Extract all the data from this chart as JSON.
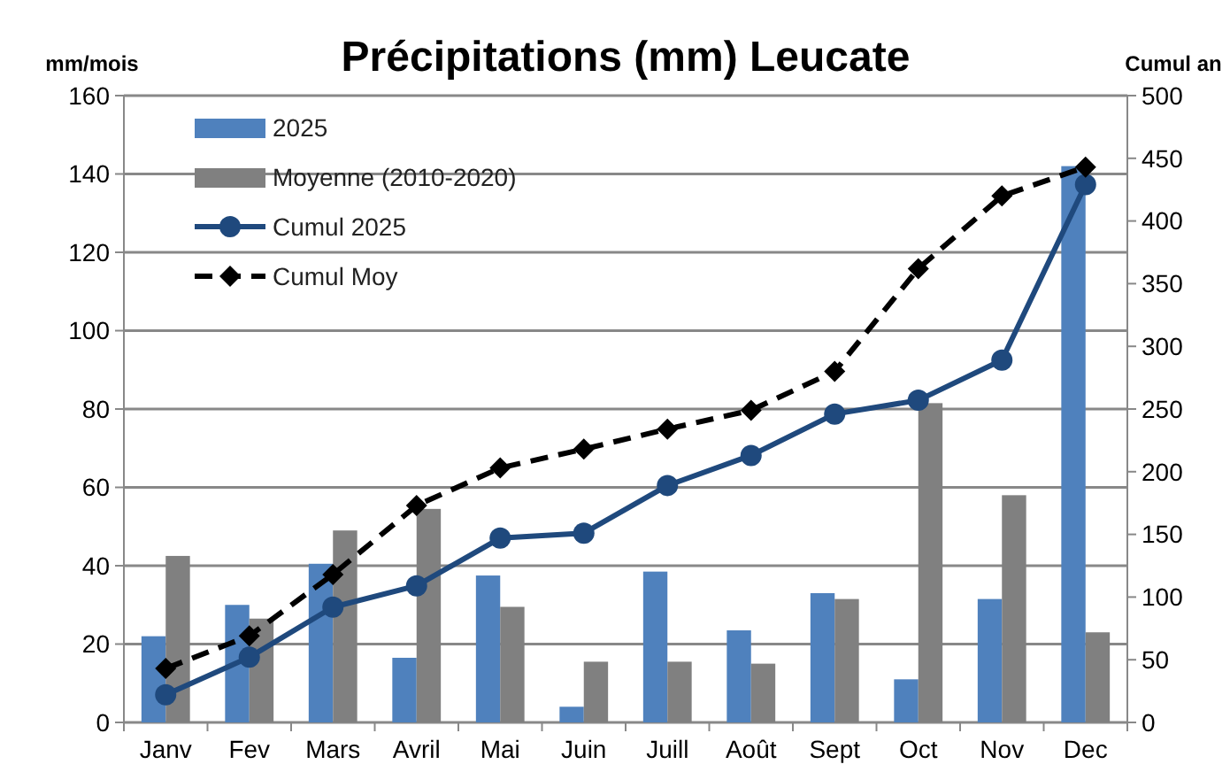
{
  "chart_data": {
    "type": "bar",
    "title": "Précipitations (mm) Leucate",
    "ylabel": "mm/mois",
    "y2label": "Cumul an",
    "categories": [
      "Janv",
      "Fev",
      "Mars",
      "Avril",
      "Mai",
      "Juin",
      "Juill",
      "Août",
      "Sept",
      "Oct",
      "Nov",
      "Dec"
    ],
    "series": [
      {
        "name": "2025",
        "color": "#4f81bd",
        "values": [
          22,
          30,
          40.5,
          16.5,
          37.5,
          4,
          38.5,
          23.5,
          33,
          11,
          31.5,
          142
        ]
      },
      {
        "name": "Moyenne (2010-2020)",
        "color": "#808080",
        "values": [
          42.5,
          26.5,
          49,
          54.5,
          29.5,
          15.5,
          15.5,
          15,
          31.5,
          81.5,
          58,
          23
        ]
      },
      {
        "name": "Cumul 2025",
        "type": "line",
        "axis": "y2",
        "color": "#1f497d",
        "marker": "circle",
        "line_style": "solid",
        "values": [
          22,
          52,
          92,
          109,
          147,
          151,
          189,
          213,
          246,
          257,
          289,
          429
        ]
      },
      {
        "name": "Cumul Moy",
        "type": "line",
        "axis": "y2",
        "color": "#000000",
        "marker": "diamond",
        "line_style": "dashed",
        "values": [
          43,
          69,
          118,
          173,
          203,
          218,
          234,
          249,
          280,
          362,
          420,
          443
        ]
      }
    ],
    "ylim": [
      0,
      160
    ],
    "yticks": [
      0,
      20,
      40,
      60,
      80,
      100,
      120,
      140,
      160
    ],
    "y2lim": [
      0,
      500
    ],
    "y2ticks": [
      0,
      50,
      100,
      150,
      200,
      250,
      300,
      350,
      400,
      450,
      500
    ],
    "grid": "y",
    "legend": "top left"
  }
}
